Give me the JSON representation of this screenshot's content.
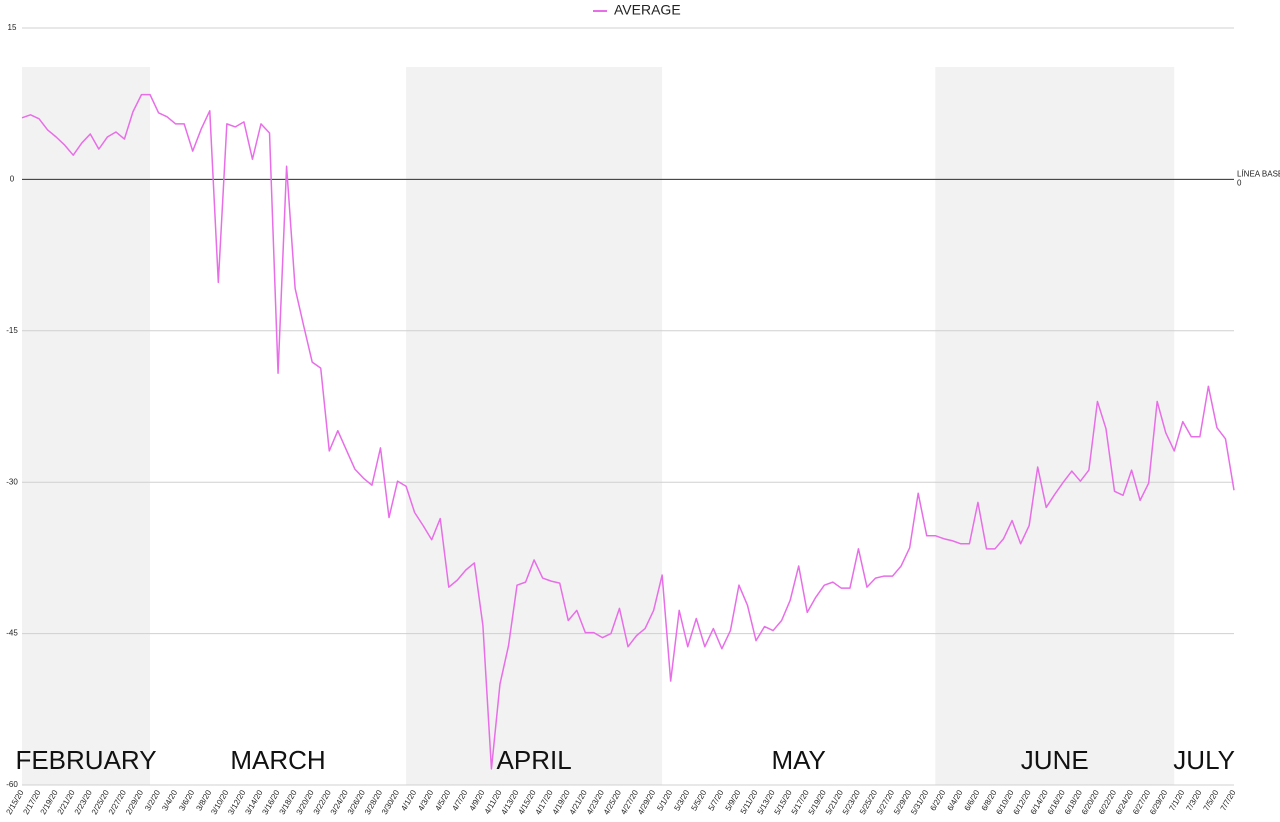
{
  "chart_data": {
    "type": "line",
    "series": [
      {
        "name": "AVERAGE",
        "color": "#e86ee8",
        "values": [
          6.1,
          6.4,
          6.0,
          4.9,
          4.2,
          3.4,
          2.4,
          3.6,
          4.5,
          3.0,
          4.2,
          4.7,
          4.0,
          6.7,
          8.4,
          8.4,
          6.6,
          6.2,
          5.5,
          5.5,
          2.8,
          5.0,
          6.8,
          -10.2,
          5.5,
          5.2,
          5.7,
          2.0,
          5.5,
          4.6,
          -19.2,
          1.3,
          -10.8,
          -14.5,
          -18.1,
          -18.7,
          -26.9,
          -24.9,
          -26.8,
          -28.7,
          -29.6,
          -30.3,
          -26.6,
          -33.5,
          -29.9,
          -30.4,
          -33.0,
          -34.3,
          -35.7,
          -33.6,
          -40.4,
          -39.7,
          -38.7,
          -38.0,
          -44.2,
          -58.4,
          -50.0,
          -46.2,
          -40.2,
          -39.9,
          -37.7,
          -39.5,
          -39.8,
          -40.0,
          -43.7,
          -42.7,
          -44.9,
          -44.9,
          -45.4,
          -45.0,
          -42.5,
          -46.3,
          -45.2,
          -44.5,
          -42.7,
          -39.2,
          -49.7,
          -42.7,
          -46.3,
          -43.5,
          -46.3,
          -44.5,
          -46.5,
          -44.7,
          -40.2,
          -42.2,
          -45.7,
          -44.3,
          -44.7,
          -43.7,
          -41.7,
          -38.3,
          -42.9,
          -41.4,
          -40.2,
          -39.9,
          -40.5,
          -40.5,
          -36.6,
          -40.4,
          -39.5,
          -39.3,
          -39.3,
          -38.3,
          -36.5,
          -31.1,
          -35.3,
          -35.3,
          -35.6,
          -35.8,
          -36.1,
          -36.1,
          -32.0,
          -36.6,
          -36.6,
          -35.6,
          -33.8,
          -36.1,
          -34.3,
          -28.5,
          -32.5,
          -31.2,
          -30.0,
          -28.9,
          -29.9,
          -28.8,
          -22.0,
          -24.7,
          -30.9,
          -31.3,
          -28.8,
          -31.8,
          -30.1,
          -22.0,
          -25.1,
          -26.9,
          -24.0,
          -25.5,
          -25.5,
          -20.5,
          -24.6,
          -25.7,
          -30.8
        ]
      }
    ],
    "categories": [
      "2/15/20",
      null,
      "2/17/20",
      null,
      "2/19/20",
      null,
      "2/21/20",
      null,
      "2/23/20",
      null,
      "2/25/20",
      null,
      "2/27/20",
      null,
      "2/29/20",
      null,
      "3/2/20",
      null,
      "3/4/20",
      null,
      "3/6/20",
      null,
      "3/8/20",
      null,
      "3/10/20",
      null,
      "3/12/20",
      null,
      "3/14/20",
      null,
      "3/16/20",
      null,
      "3/18/20",
      null,
      "3/20/20",
      null,
      "3/22/20",
      null,
      "3/24/20",
      null,
      "3/26/20",
      null,
      "3/28/20",
      null,
      "3/30/20",
      null,
      "4/1/20",
      null,
      "4/3/20",
      null,
      "4/5/20",
      null,
      "4/7/20",
      null,
      "4/9/20",
      null,
      "4/11/20",
      null,
      "4/13/20",
      null,
      "4/15/20",
      null,
      "4/17/20",
      null,
      "4/19/20",
      null,
      "4/21/20",
      null,
      "4/23/20",
      null,
      "4/25/20",
      null,
      "4/27/20",
      null,
      "4/29/20",
      null,
      "5/1/20",
      null,
      "5/3/20",
      null,
      "5/5/20",
      null,
      "5/7/20",
      null,
      "5/9/20",
      null,
      "5/11/20",
      null,
      "5/13/20",
      null,
      "5/15/20",
      null,
      "5/17/20",
      null,
      "5/19/20",
      null,
      "5/21/20",
      null,
      "5/23/20",
      null,
      "5/25/20",
      null,
      "5/27/20",
      null,
      "5/29/20",
      null,
      "5/31/20",
      null,
      "6/2/20",
      null,
      "6/4/20",
      null,
      "6/6/20",
      null,
      "6/8/20",
      null,
      "6/10/20",
      null,
      "6/12/20",
      null,
      "6/14/20",
      null,
      "6/16/20",
      null,
      "6/18/20",
      null,
      "6/20/20",
      null,
      "6/22/20",
      null,
      "6/24/20",
      null,
      "6/27/20",
      null,
      "6/29/20",
      null,
      "7/1/20",
      null,
      "7/3/20",
      null,
      "7/5/20",
      null,
      "7/7/20"
    ],
    "months": [
      {
        "label": "FEBRUARY",
        "shaded": true
      },
      {
        "label": "MARCH",
        "shaded": false
      },
      {
        "label": "APRIL",
        "shaded": true
      },
      {
        "label": "MAY",
        "shaded": false
      },
      {
        "label": "JUNE",
        "shaded": true
      },
      {
        "label": "JULY",
        "shaded": false
      }
    ],
    "baseline": {
      "value": 0,
      "label": "LÍNEA BASE"
    },
    "ylim": [
      -60,
      15
    ],
    "yticks": [
      -60,
      -45,
      -30,
      -15,
      0,
      15
    ],
    "grid": true,
    "legend": "top"
  }
}
